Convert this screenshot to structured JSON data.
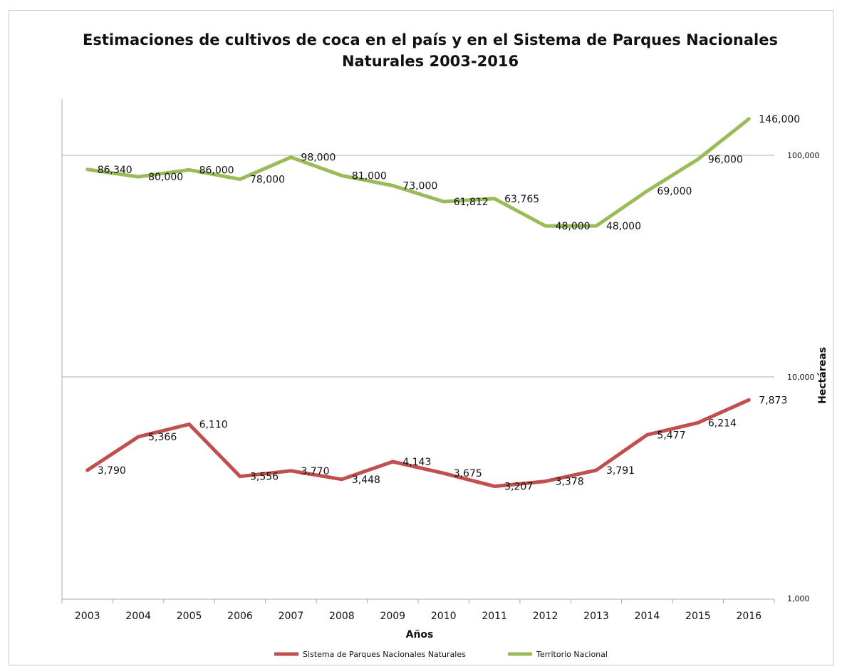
{
  "chart_data": {
    "type": "line",
    "title_line1": "Estimaciones de cultivos de coca en el país y en el Sistema de Parques Nacionales",
    "title_line2": "Naturales 2003-2016",
    "xlabel": "Años",
    "ylabel": "Hectáreas",
    "yscale": "log",
    "ylim": [
      1000,
      160000
    ],
    "y_ticks": [
      1000,
      10000,
      100000
    ],
    "y_tick_labels": [
      "1,000",
      "10,000",
      "100,000"
    ],
    "y_axis_side": "right",
    "grid": "horizontal major",
    "legend_position": "bottom",
    "categories": [
      "2003",
      "2004",
      "2005",
      "2006",
      "2007",
      "2008",
      "2009",
      "2010",
      "2011",
      "2012",
      "2013",
      "2014",
      "2015",
      "2016"
    ],
    "series": [
      {
        "name": "Sistema de Parques Nacionales Naturales",
        "color": "#c0504d",
        "values": [
          3790,
          5366,
          6110,
          3556,
          3770,
          3448,
          4143,
          3675,
          3207,
          3378,
          3791,
          5477,
          6214,
          7873
        ],
        "labels": [
          "3,790",
          "5,366",
          "6,110",
          "3,556",
          "3,770",
          "3,448",
          "4,143",
          "3,675",
          "3,207",
          "3,378",
          "3,791",
          "5,477",
          "6,214",
          "7,873"
        ]
      },
      {
        "name": "Territorio Nacional",
        "color": "#9bbb59",
        "values": [
          86340,
          80000,
          86000,
          78000,
          98000,
          81000,
          73000,
          61812,
          63765,
          48000,
          48000,
          69000,
          96000,
          146000
        ],
        "labels": [
          "86,340",
          "80,000",
          "86,000",
          "78,000",
          "98,000",
          "81,000",
          "73,000",
          "61,812",
          "63,765",
          "48,000",
          "48,000",
          "69,000",
          "96,000",
          "146,000"
        ]
      }
    ]
  }
}
